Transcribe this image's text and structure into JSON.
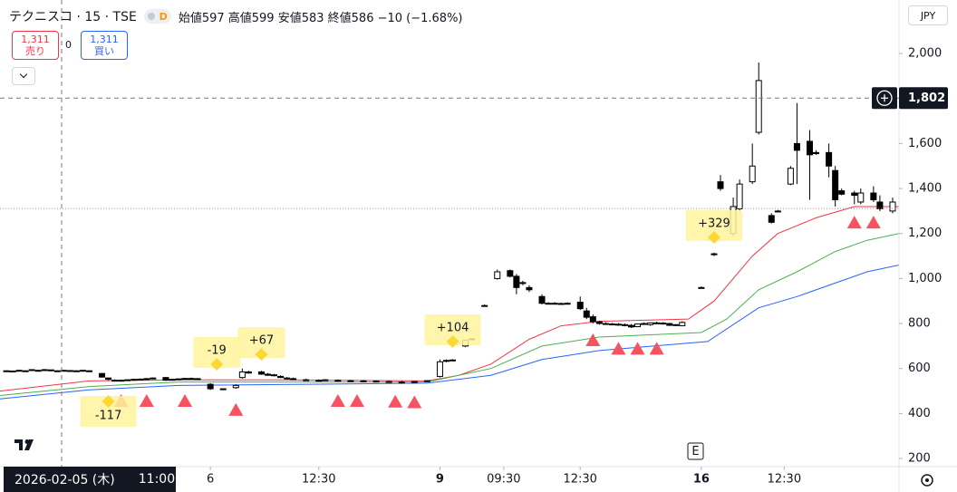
{
  "header": {
    "symbol": "テクニスコ · 15 · TSE",
    "badge": "D",
    "ohlc": "始値597 高値599 安値583 終値586 −10 (−1.68%)",
    "currency": "JPY"
  },
  "trade": {
    "sell_price": "1,311",
    "sell_label": "売り",
    "spread": "0",
    "buy_price": "1,311",
    "buy_label": "買い"
  },
  "crosshair": {
    "date": "2026-02-05 (木)",
    "time": "11:00",
    "price": 1802,
    "price_label": "1,802"
  },
  "last_price": 1311,
  "event_badge": "E",
  "chart_data": {
    "type": "candlestick",
    "xlim": [
      -1,
      140
    ],
    "ylim": [
      164,
      2238
    ],
    "yticks": [
      200,
      400,
      600,
      800,
      {
        "value": 1000,
        "label": "1,000"
      },
      {
        "value": 1200,
        "label": "1,200"
      },
      {
        "value": 1400,
        "label": "1,400"
      },
      {
        "value": 1600,
        "label": "1,600"
      },
      {
        "value": 1800,
        "label": "1,800"
      },
      {
        "value": 2000,
        "label": "2,000"
      }
    ],
    "xticks": [
      {
        "value": 32,
        "label": "6"
      },
      {
        "value": 49,
        "label": "12:30"
      },
      {
        "value": 68,
        "label": "9",
        "bold": true
      },
      {
        "value": 78,
        "label": "09:30"
      },
      {
        "value": 90,
        "label": "12:30"
      },
      {
        "value": 109,
        "label": "16",
        "bold": true
      },
      {
        "value": 122,
        "label": "12:30"
      }
    ],
    "up_color": "#ffffff",
    "down_color": "#000000",
    "candles": [
      {
        "i": 0,
        "open": 590,
        "high": 592,
        "low": 588,
        "close": 590
      },
      {
        "i": 1,
        "open": 588,
        "high": 590,
        "low": 586,
        "close": 589
      },
      {
        "i": 2,
        "open": 591,
        "high": 594,
        "low": 589,
        "close": 592
      },
      {
        "i": 3,
        "open": 590,
        "high": 592,
        "low": 588,
        "close": 590
      },
      {
        "i": 4,
        "open": 594,
        "high": 597,
        "low": 592,
        "close": 595
      },
      {
        "i": 5,
        "open": 592,
        "high": 594,
        "low": 590,
        "close": 592
      },
      {
        "i": 6,
        "open": 595,
        "high": 598,
        "low": 593,
        "close": 595
      },
      {
        "i": 7,
        "open": 593,
        "high": 595,
        "low": 591,
        "close": 594
      },
      {
        "i": 8,
        "open": 590,
        "high": 592,
        "low": 588,
        "close": 590
      },
      {
        "i": 9,
        "open": 592,
        "high": 594,
        "low": 590,
        "close": 592
      },
      {
        "i": 10,
        "open": 591,
        "high": 593,
        "low": 589,
        "close": 590
      },
      {
        "i": 11,
        "open": 590,
        "high": 592,
        "low": 588,
        "close": 590
      },
      {
        "i": 12,
        "open": 592,
        "high": 594,
        "low": 589,
        "close": 591
      },
      {
        "i": 13,
        "open": 590,
        "high": 592,
        "low": 588,
        "close": 590
      },
      {
        "i": 15,
        "open": 578,
        "high": 580,
        "low": 560,
        "close": 562
      },
      {
        "i": 16,
        "open": 558,
        "high": 560,
        "low": 548,
        "close": 552
      },
      {
        "i": 17,
        "open": 546,
        "high": 552,
        "low": 544,
        "close": 548
      },
      {
        "i": 18,
        "open": 545,
        "high": 550,
        "low": 542,
        "close": 548
      },
      {
        "i": 19,
        "open": 548,
        "high": 552,
        "low": 545,
        "close": 550
      },
      {
        "i": 20,
        "open": 550,
        "high": 555,
        "low": 547,
        "close": 552
      },
      {
        "i": 21,
        "open": 552,
        "high": 556,
        "low": 549,
        "close": 553
      },
      {
        "i": 22,
        "open": 553,
        "high": 558,
        "low": 550,
        "close": 555
      },
      {
        "i": 23,
        "open": 556,
        "high": 560,
        "low": 552,
        "close": 558
      },
      {
        "i": 25,
        "open": 560,
        "high": 562,
        "low": 545,
        "close": 548
      },
      {
        "i": 26,
        "open": 550,
        "high": 555,
        "low": 547,
        "close": 552
      },
      {
        "i": 27,
        "open": 552,
        "high": 556,
        "low": 549,
        "close": 554
      },
      {
        "i": 28,
        "open": 555,
        "high": 558,
        "low": 551,
        "close": 556
      },
      {
        "i": 29,
        "open": 556,
        "high": 560,
        "low": 552,
        "close": 555
      },
      {
        "i": 30,
        "open": 555,
        "high": 558,
        "low": 550,
        "close": 552
      },
      {
        "i": 32,
        "open": 530,
        "high": 535,
        "low": 505,
        "close": 510
      },
      {
        "i": 34,
        "open": 508,
        "high": 512,
        "low": 504,
        "close": 510
      },
      {
        "i": 36,
        "open": 515,
        "high": 530,
        "low": 510,
        "close": 525
      },
      {
        "i": 37,
        "open": 560,
        "high": 600,
        "low": 555,
        "close": 585
      },
      {
        "i": 38,
        "open": 585,
        "high": 590,
        "low": 578,
        "close": 580
      },
      {
        "i": 40,
        "open": 585,
        "high": 590,
        "low": 572,
        "close": 575
      },
      {
        "i": 41,
        "open": 575,
        "high": 580,
        "low": 568,
        "close": 570
      },
      {
        "i": 42,
        "open": 572,
        "high": 576,
        "low": 565,
        "close": 568
      },
      {
        "i": 43,
        "open": 565,
        "high": 570,
        "low": 558,
        "close": 560
      },
      {
        "i": 44,
        "open": 558,
        "high": 562,
        "low": 552,
        "close": 555
      },
      {
        "i": 45,
        "open": 555,
        "high": 560,
        "low": 550,
        "close": 552
      },
      {
        "i": 47,
        "open": 550,
        "high": 555,
        "low": 545,
        "close": 548
      },
      {
        "i": 49,
        "open": 548,
        "high": 552,
        "low": 544,
        "close": 548
      },
      {
        "i": 50,
        "open": 550,
        "high": 553,
        "low": 546,
        "close": 550
      },
      {
        "i": 52,
        "open": 548,
        "high": 552,
        "low": 544,
        "close": 546
      },
      {
        "i": 54,
        "open": 546,
        "high": 550,
        "low": 542,
        "close": 545
      },
      {
        "i": 56,
        "open": 545,
        "high": 549,
        "low": 541,
        "close": 544
      },
      {
        "i": 58,
        "open": 544,
        "high": 548,
        "low": 540,
        "close": 542
      },
      {
        "i": 60,
        "open": 542,
        "high": 546,
        "low": 538,
        "close": 541
      },
      {
        "i": 62,
        "open": 540,
        "high": 545,
        "low": 536,
        "close": 538
      },
      {
        "i": 64,
        "open": 540,
        "high": 544,
        "low": 537,
        "close": 542
      },
      {
        "i": 66,
        "open": 545,
        "high": 548,
        "low": 540,
        "close": 546
      },
      {
        "i": 68,
        "open": 565,
        "high": 640,
        "low": 560,
        "close": 630
      },
      {
        "i": 69,
        "open": 632,
        "high": 640,
        "low": 628,
        "close": 636
      },
      {
        "i": 70,
        "open": 636,
        "high": 642,
        "low": 632,
        "close": 638
      },
      {
        "i": 72,
        "open": 700,
        "high": 730,
        "low": 695,
        "close": 725
      },
      {
        "i": 73,
        "open": 730,
        "high": 735,
        "low": 725,
        "close": 732
      },
      {
        "i": 75,
        "open": 880,
        "high": 885,
        "low": 876,
        "close": 880
      },
      {
        "i": 77,
        "open": 1000,
        "high": 1040,
        "low": 995,
        "close": 1030
      },
      {
        "i": 79,
        "open": 1035,
        "high": 1040,
        "low": 1005,
        "close": 1010
      },
      {
        "i": 80,
        "open": 1010,
        "high": 1020,
        "low": 930,
        "close": 960
      },
      {
        "i": 81,
        "open": 980,
        "high": 990,
        "low": 970,
        "close": 982
      },
      {
        "i": 82,
        "open": 960,
        "high": 970,
        "low": 940,
        "close": 950
      },
      {
        "i": 84,
        "open": 920,
        "high": 930,
        "low": 885,
        "close": 890
      },
      {
        "i": 85,
        "open": 890,
        "high": 895,
        "low": 885,
        "close": 889
      },
      {
        "i": 86,
        "open": 890,
        "high": 895,
        "low": 886,
        "close": 888
      },
      {
        "i": 87,
        "open": 889,
        "high": 893,
        "low": 884,
        "close": 888
      },
      {
        "i": 88,
        "open": 890,
        "high": 894,
        "low": 886,
        "close": 889
      },
      {
        "i": 90,
        "open": 895,
        "high": 920,
        "low": 860,
        "close": 866
      },
      {
        "i": 91,
        "open": 856,
        "high": 870,
        "low": 820,
        "close": 828
      },
      {
        "i": 92,
        "open": 830,
        "high": 840,
        "low": 800,
        "close": 808
      },
      {
        "i": 93,
        "open": 808,
        "high": 812,
        "low": 795,
        "close": 800
      },
      {
        "i": 94,
        "open": 800,
        "high": 805,
        "low": 795,
        "close": 798
      },
      {
        "i": 95,
        "open": 798,
        "high": 803,
        "low": 793,
        "close": 797
      },
      {
        "i": 96,
        "open": 797,
        "high": 802,
        "low": 790,
        "close": 795
      },
      {
        "i": 97,
        "open": 795,
        "high": 800,
        "low": 788,
        "close": 792
      },
      {
        "i": 98,
        "open": 792,
        "high": 798,
        "low": 780,
        "close": 785
      },
      {
        "i": 99,
        "open": 786,
        "high": 800,
        "low": 784,
        "close": 798
      },
      {
        "i": 100,
        "open": 798,
        "high": 805,
        "low": 795,
        "close": 800
      },
      {
        "i": 101,
        "open": 795,
        "high": 805,
        "low": 790,
        "close": 803
      },
      {
        "i": 102,
        "open": 803,
        "high": 808,
        "low": 798,
        "close": 800
      },
      {
        "i": 103,
        "open": 800,
        "high": 806,
        "low": 795,
        "close": 802
      },
      {
        "i": 104,
        "open": 800,
        "high": 803,
        "low": 790,
        "close": 792
      },
      {
        "i": 105,
        "open": 792,
        "high": 798,
        "low": 788,
        "close": 795
      },
      {
        "i": 106,
        "open": 790,
        "high": 810,
        "low": 788,
        "close": 805
      },
      {
        "i": 109,
        "open": 960,
        "high": 965,
        "low": 955,
        "close": 960
      },
      {
        "i": 111,
        "open": 1110,
        "high": 1115,
        "low": 1100,
        "close": 1108
      },
      {
        "i": 112,
        "open": 1430,
        "high": 1460,
        "low": 1390,
        "close": 1400
      },
      {
        "i": 114,
        "open": 1200,
        "high": 1360,
        "low": 1190,
        "close": 1320
      },
      {
        "i": 115,
        "open": 1310,
        "high": 1440,
        "low": 1300,
        "close": 1420
      },
      {
        "i": 117,
        "open": 1430,
        "high": 1600,
        "low": 1420,
        "close": 1500
      },
      {
        "i": 118,
        "open": 1650,
        "high": 1960,
        "low": 1640,
        "close": 1880
      },
      {
        "i": 120,
        "open": 1280,
        "high": 1290,
        "low": 1245,
        "close": 1250
      },
      {
        "i": 121,
        "open": 1300,
        "high": 1305,
        "low": 1295,
        "close": 1300
      },
      {
        "i": 123,
        "open": 1420,
        "high": 1500,
        "low": 1415,
        "close": 1490
      },
      {
        "i": 124,
        "open": 1600,
        "high": 1780,
        "low": 1420,
        "close": 1570
      },
      {
        "i": 126,
        "open": 1610,
        "high": 1660,
        "low": 1350,
        "close": 1550
      },
      {
        "i": 127,
        "open": 1560,
        "high": 1570,
        "low": 1550,
        "close": 1555
      },
      {
        "i": 129,
        "open": 1560,
        "high": 1600,
        "low": 1450,
        "close": 1500
      },
      {
        "i": 130,
        "open": 1480,
        "high": 1500,
        "low": 1320,
        "close": 1350
      },
      {
        "i": 131,
        "open": 1390,
        "high": 1400,
        "low": 1370,
        "close": 1375
      },
      {
        "i": 133,
        "open": 1380,
        "high": 1390,
        "low": 1330,
        "close": 1370
      },
      {
        "i": 134,
        "open": 1340,
        "high": 1400,
        "low": 1330,
        "close": 1380
      },
      {
        "i": 136,
        "open": 1380,
        "high": 1410,
        "low": 1340,
        "close": 1350
      },
      {
        "i": 137,
        "open": 1340,
        "high": 1370,
        "low": 1300,
        "close": 1310
      },
      {
        "i": 139,
        "open": 1300,
        "high": 1360,
        "low": 1290,
        "close": 1340
      }
    ],
    "lines": [
      {
        "color": "#f23645",
        "x": [
          -1,
          13,
          27,
          42,
          66,
          71,
          76,
          82,
          87,
          93,
          107,
          111,
          117,
          121,
          127,
          133,
          140
        ],
        "values": [
          500,
          545,
          550,
          550,
          545,
          570,
          620,
          730,
          790,
          810,
          820,
          900,
          1100,
          1200,
          1270,
          1320,
          1320
        ]
      },
      {
        "color": "#4caf50",
        "x": [
          -1,
          13,
          27,
          66,
          76,
          84,
          93,
          109,
          113,
          118,
          124,
          130,
          135,
          140
        ],
        "values": [
          480,
          520,
          540,
          540,
          600,
          700,
          740,
          760,
          820,
          950,
          1030,
          1120,
          1170,
          1200
        ]
      },
      {
        "color": "#2962ff",
        "x": [
          -1,
          13,
          27,
          66,
          76,
          84,
          93,
          110,
          118,
          124,
          130,
          135,
          140
        ],
        "values": [
          465,
          505,
          525,
          535,
          570,
          640,
          680,
          720,
          870,
          920,
          980,
          1030,
          1060
        ]
      }
    ],
    "signal_color": "#f7525f",
    "signals": [
      {
        "i": 18,
        "price": 458
      },
      {
        "i": 22,
        "price": 458
      },
      {
        "i": 28,
        "price": 458
      },
      {
        "i": 36,
        "price": 418
      },
      {
        "i": 52,
        "price": 458
      },
      {
        "i": 55,
        "price": 458
      },
      {
        "i": 61,
        "price": 455
      },
      {
        "i": 64,
        "price": 452
      },
      {
        "i": 92,
        "price": 728
      },
      {
        "i": 96,
        "price": 690
      },
      {
        "i": 99,
        "price": 690
      },
      {
        "i": 102,
        "price": 690
      },
      {
        "i": 133,
        "price": 1251
      },
      {
        "i": 136,
        "price": 1251
      }
    ],
    "annotations": [
      {
        "i": 16,
        "price": 454,
        "text": "-117",
        "color": "#00acc1",
        "placement": "below"
      },
      {
        "i": 33,
        "price": 619,
        "text": "-19",
        "color": "#00acc1",
        "placement": "above"
      },
      {
        "i": 40,
        "price": 663,
        "text": "+67",
        "color": "#9c27b0",
        "placement": "above"
      },
      {
        "i": 70,
        "price": 720,
        "text": "+104",
        "color": "#9c27b0",
        "placement": "above"
      },
      {
        "i": 111,
        "price": 1183,
        "text": "+329",
        "color": "#9c27b0",
        "placement": "above"
      }
    ]
  }
}
